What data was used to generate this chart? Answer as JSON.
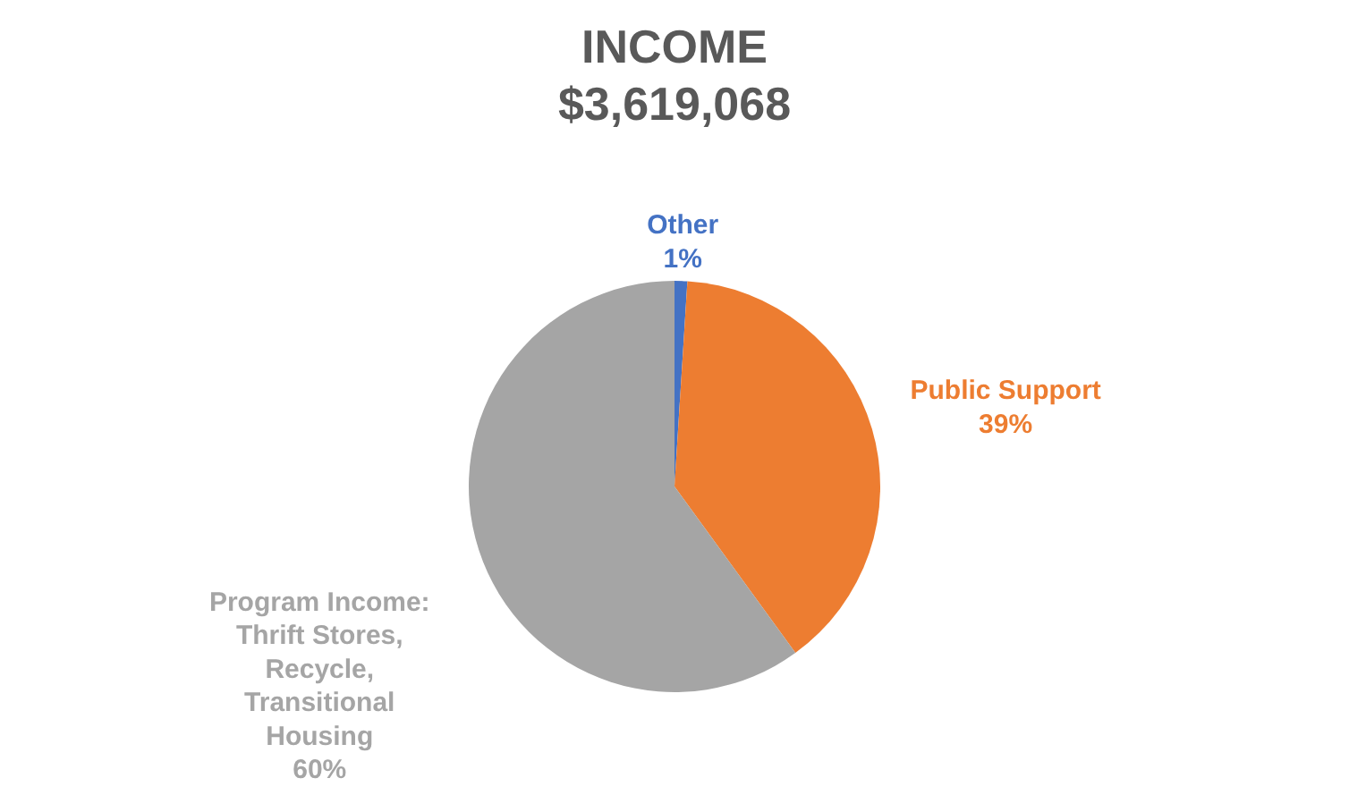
{
  "chart_data": {
    "type": "pie",
    "title": "INCOME",
    "subtitle": "$3,619,068",
    "categories": [
      "Other",
      "Public Support",
      "Program Income: Thrift Stores, Recycle, Transitional Housing"
    ],
    "values": [
      1,
      39,
      60
    ],
    "colors": [
      "#4472c4",
      "#ed7d31",
      "#a5a5a5"
    ],
    "value_labels": [
      "1%",
      "39%",
      "60%"
    ]
  }
}
